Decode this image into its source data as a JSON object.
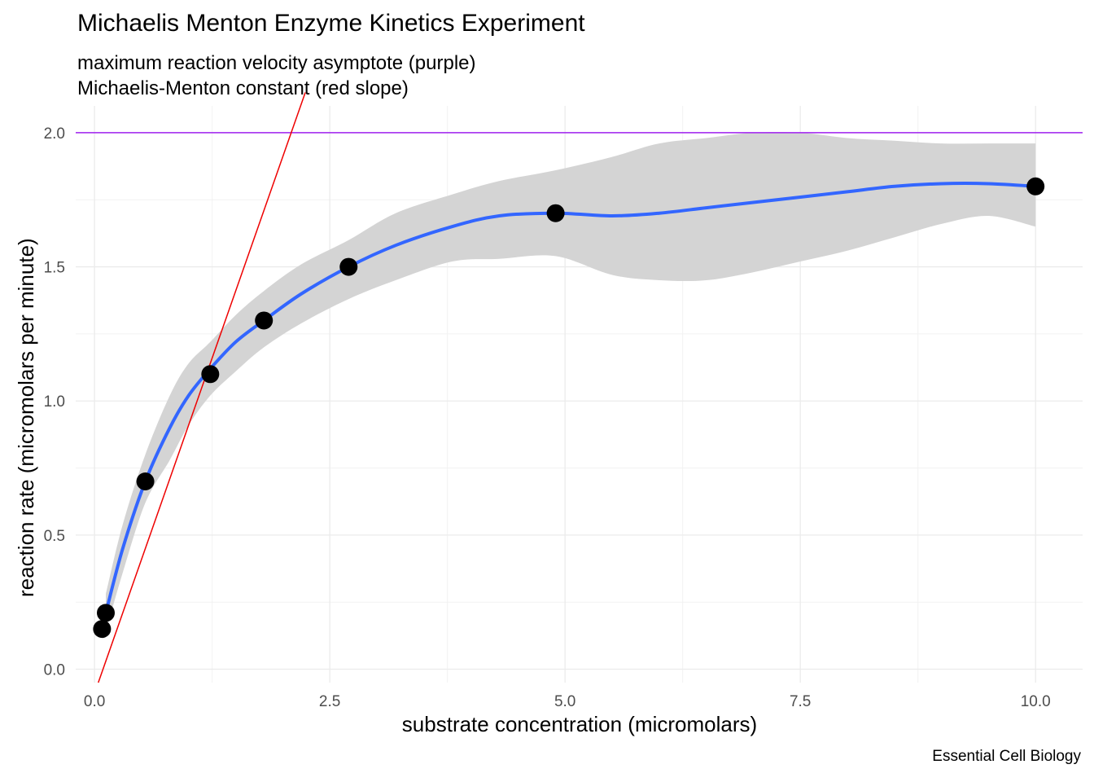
{
  "chart_data": {
    "type": "scatter",
    "title": "Michaelis Menton Enzyme Kinetics Experiment",
    "subtitle": [
      "maximum reaction velocity asymptote (purple)",
      "Michaelis-Menton constant (red slope)"
    ],
    "caption": "Essential Cell Biology",
    "xlabel": "substrate concentration (micromolars)",
    "ylabel": "reaction rate (micromolars per minute)",
    "xlim": [
      -0.2,
      10.5
    ],
    "ylim": [
      -0.05,
      2.1
    ],
    "x_ticks": [
      0.0,
      2.5,
      5.0,
      7.5,
      10.0
    ],
    "x_tick_labels": [
      "0.0",
      "2.5",
      "5.0",
      "7.5",
      "10.0"
    ],
    "y_ticks": [
      0.0,
      0.5,
      1.0,
      1.5,
      2.0
    ],
    "y_tick_labels": [
      "0.0",
      "0.5",
      "1.0",
      "1.5",
      "2.0"
    ],
    "grid": true,
    "points": {
      "x": [
        0.08,
        0.12,
        0.54,
        1.23,
        1.8,
        2.7,
        4.9,
        10.0
      ],
      "y": [
        0.15,
        0.21,
        0.7,
        1.1,
        1.3,
        1.5,
        1.7,
        1.8
      ],
      "color": "#000000"
    },
    "smooth": {
      "color": "#3366ff",
      "band_color": "#d4d4d4",
      "x": [
        0.12,
        0.3,
        0.54,
        0.8,
        1.0,
        1.23,
        1.5,
        1.8,
        2.2,
        2.7,
        3.2,
        3.8,
        4.3,
        4.9,
        5.5,
        6.0,
        6.5,
        7.0,
        7.5,
        8.0,
        8.5,
        9.0,
        9.5,
        10.0
      ],
      "y": [
        0.21,
        0.45,
        0.7,
        0.9,
        1.02,
        1.12,
        1.22,
        1.3,
        1.4,
        1.5,
        1.58,
        1.65,
        1.69,
        1.7,
        1.69,
        1.7,
        1.72,
        1.74,
        1.76,
        1.78,
        1.8,
        1.81,
        1.81,
        1.8
      ],
      "lower": [
        0.14,
        0.36,
        0.62,
        0.78,
        0.91,
        1.02,
        1.11,
        1.2,
        1.29,
        1.38,
        1.45,
        1.52,
        1.53,
        1.54,
        1.47,
        1.45,
        1.45,
        1.48,
        1.52,
        1.56,
        1.61,
        1.66,
        1.69,
        1.65
      ],
      "upper": [
        0.28,
        0.54,
        0.8,
        1.02,
        1.14,
        1.22,
        1.32,
        1.41,
        1.51,
        1.6,
        1.7,
        1.77,
        1.82,
        1.86,
        1.91,
        1.96,
        1.98,
        2.0,
        2.0,
        1.98,
        1.97,
        1.96,
        1.96,
        1.96
      ]
    },
    "asymptote": {
      "y": 2.0,
      "color": "#a020f0"
    },
    "slope_line": {
      "slope": 1.0,
      "intercept": -0.09,
      "color": "#ee0000"
    }
  }
}
